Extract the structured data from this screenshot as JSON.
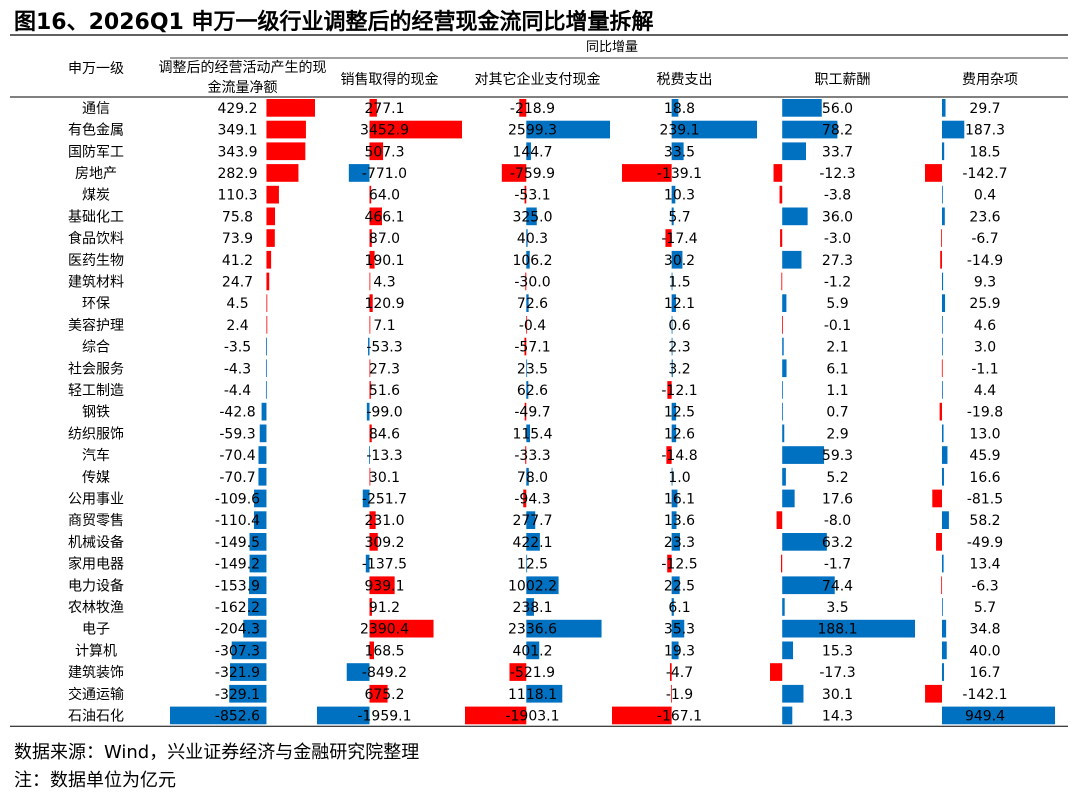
{
  "figure_title": "图16、2026Q1 申万一级行业调整后的经营现金流同比增量拆解",
  "source_note": "数据来源：Wind，兴业证券经济与金融研究院整理",
  "unit_note": "注：数据单位为亿元",
  "colors": {
    "positive": "#ff0000",
    "negative": "#0070c0"
  },
  "chart_data": {
    "type": "table",
    "group_header": "同比增量",
    "row_header": "申万一级",
    "columns": [
      "调整后的经营活动产生的现金流量净额",
      "销售取得的现金",
      "对其它企业支付现金",
      "税费支出",
      "职工薪酬",
      "费用杂项"
    ],
    "column_colors": [
      [
        "#ff0000",
        "#0070c0"
      ],
      [
        "#ff0000",
        "#0070c0"
      ],
      [
        "#0070c0",
        "#ff0000"
      ],
      [
        "#0070c0",
        "#ff0000"
      ],
      [
        "#0070c0",
        "#ff0000"
      ],
      [
        "#0070c0",
        "#ff0000"
      ]
    ],
    "rows": [
      {
        "name": "通信",
        "values": [
          429.2,
          277.1,
          -218.9,
          18.8,
          56.0,
          29.7
        ]
      },
      {
        "name": "有色金属",
        "values": [
          349.1,
          3452.9,
          2599.3,
          239.1,
          78.2,
          187.3
        ]
      },
      {
        "name": "国防军工",
        "values": [
          343.9,
          507.3,
          144.7,
          33.5,
          33.7,
          18.5
        ]
      },
      {
        "name": "房地产",
        "values": [
          282.9,
          -771.0,
          -759.9,
          -139.1,
          -12.3,
          -142.7
        ]
      },
      {
        "name": "煤炭",
        "values": [
          110.3,
          64.0,
          -53.1,
          10.3,
          -3.8,
          0.4
        ]
      },
      {
        "name": "基础化工",
        "values": [
          75.8,
          466.1,
          325.0,
          5.7,
          36.0,
          23.6
        ]
      },
      {
        "name": "食品饮料",
        "values": [
          73.9,
          87.0,
          40.3,
          -17.4,
          -3.0,
          -6.7
        ]
      },
      {
        "name": "医药生物",
        "values": [
          41.2,
          190.1,
          106.2,
          30.2,
          27.3,
          -14.9
        ]
      },
      {
        "name": "建筑材料",
        "values": [
          24.7,
          4.3,
          -30.0,
          1.5,
          -1.2,
          9.3
        ]
      },
      {
        "name": "环保",
        "values": [
          4.5,
          120.9,
          72.6,
          12.1,
          5.9,
          25.9
        ]
      },
      {
        "name": "美容护理",
        "values": [
          2.4,
          7.1,
          -0.4,
          0.6,
          -0.1,
          4.6
        ]
      },
      {
        "name": "综合",
        "values": [
          -3.5,
          -53.3,
          -57.1,
          2.3,
          2.1,
          3.0
        ]
      },
      {
        "name": "社会服务",
        "values": [
          -4.3,
          27.3,
          23.5,
          3.2,
          6.1,
          -1.1
        ]
      },
      {
        "name": "轻工制造",
        "values": [
          -4.4,
          51.6,
          62.6,
          -12.1,
          1.1,
          4.4
        ]
      },
      {
        "name": "钢铁",
        "values": [
          -42.8,
          -99.0,
          -49.7,
          12.5,
          0.7,
          -19.8
        ]
      },
      {
        "name": "纺织服饰",
        "values": [
          -59.3,
          84.6,
          115.4,
          12.6,
          2.9,
          13.0
        ]
      },
      {
        "name": "汽车",
        "values": [
          -70.4,
          -13.3,
          -33.3,
          -14.8,
          59.3,
          45.9
        ]
      },
      {
        "name": "传媒",
        "values": [
          -70.7,
          30.1,
          78.0,
          1.0,
          5.2,
          16.6
        ]
      },
      {
        "name": "公用事业",
        "values": [
          -109.6,
          -251.7,
          -94.3,
          16.1,
          17.6,
          -81.5
        ]
      },
      {
        "name": "商贸零售",
        "values": [
          -110.4,
          231.0,
          277.7,
          13.6,
          -8.0,
          58.2
        ]
      },
      {
        "name": "机械设备",
        "values": [
          -149.5,
          309.2,
          422.1,
          23.3,
          63.2,
          -49.9
        ]
      },
      {
        "name": "家用电器",
        "values": [
          -149.2,
          -137.5,
          12.5,
          -12.5,
          -1.7,
          13.4
        ]
      },
      {
        "name": "电力设备",
        "values": [
          -153.9,
          939.1,
          1002.2,
          22.5,
          74.4,
          -6.3
        ]
      },
      {
        "name": "农林牧渔",
        "values": [
          -162.2,
          91.2,
          238.1,
          6.1,
          3.5,
          5.7
        ]
      },
      {
        "name": "电子",
        "values": [
          -204.3,
          2390.4,
          2336.6,
          35.3,
          188.1,
          34.8
        ]
      },
      {
        "name": "计算机",
        "values": [
          -307.3,
          168.5,
          401.2,
          19.3,
          15.3,
          40.0
        ]
      },
      {
        "name": "建筑装饰",
        "values": [
          -321.9,
          -849.2,
          -521.9,
          -4.7,
          -17.3,
          16.7
        ]
      },
      {
        "name": "交通运输",
        "values": [
          -329.1,
          675.2,
          1118.1,
          -1.9,
          30.1,
          -142.1
        ]
      },
      {
        "name": "石油石化",
        "values": [
          -852.6,
          -1959.1,
          -1903.1,
          -167.1,
          14.3,
          949.4
        ]
      }
    ]
  }
}
